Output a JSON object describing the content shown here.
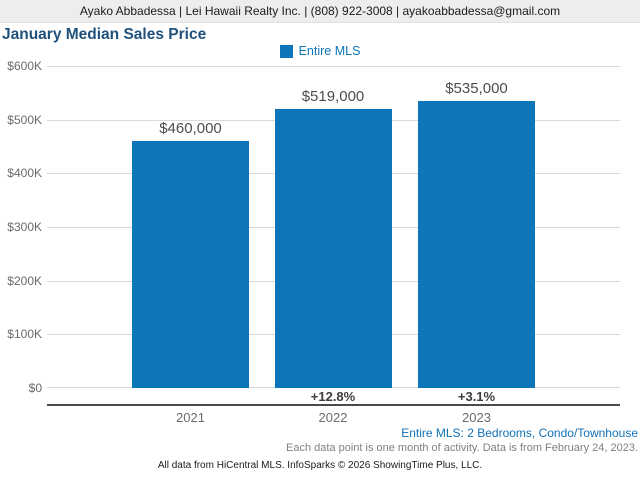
{
  "header": {
    "text": "Ayako Abbadessa | Lei Hawaii Realty Inc. | (808) 922-3008 | ayakoabbadessa@gmail.com"
  },
  "title": "January Median Sales Price",
  "legend": {
    "label": "Entire MLS",
    "color": "#0d76ba"
  },
  "chart_data": {
    "type": "bar",
    "title": "January Median Sales Price",
    "series_name": "Entire MLS",
    "categories": [
      "2021",
      "2022",
      "2023"
    ],
    "values": [
      460000,
      519000,
      535000
    ],
    "value_labels": [
      "$460,000",
      "$519,000",
      "$535,000"
    ],
    "change_labels": [
      "",
      "+12.8%",
      "+3.1%"
    ],
    "y_ticks": [
      "$600K",
      "$500K",
      "$400K",
      "$300K",
      "$200K",
      "$100K",
      "$0"
    ],
    "ylim": [
      0,
      600000
    ],
    "grid": true,
    "legend_position": "top",
    "bar_color": "#0d76ba"
  },
  "footnotes": {
    "filter": "Entire MLS: 2 Bedrooms, Condo/Townhouse",
    "data_note": "Each data point is one month of activity. Data is from February 24, 2023.",
    "attribution": "All data from HiCentral MLS. InfoSparks © 2026 ShowingTime Plus, LLC."
  }
}
